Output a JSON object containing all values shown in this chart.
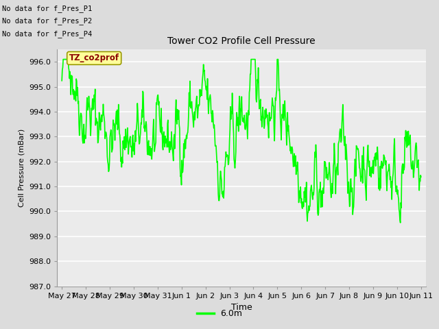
{
  "title": "Tower CO2 Profile Cell Pressure",
  "xlabel": "Time",
  "ylabel": "Cell Pressure (mBar)",
  "ylim": [
    987.0,
    996.5
  ],
  "yticks": [
    987.0,
    988.0,
    989.0,
    990.0,
    991.0,
    992.0,
    993.0,
    994.0,
    995.0,
    996.0
  ],
  "line_color": "#00FF00",
  "line_width": 1.2,
  "background_color": "#DCDCDC",
  "plot_bg_color": "#EBEBEB",
  "legend_label": "6.0m",
  "text_annotations": [
    "No data for f_Pres_P1",
    "No data for f_Pres_P2",
    "No data for f_Pres_P4"
  ],
  "tooltip_text": "TZ_co2prof",
  "tooltip_bg": "#FFFF99",
  "tooltip_border": "#999900",
  "xtick_labels": [
    "May 27",
    "May 28",
    "May 29",
    "May 30",
    "May 31",
    "Jun 1",
    "Jun 2",
    "Jun 3",
    "Jun 4",
    "Jun 5",
    "Jun 6",
    "Jun 7",
    "Jun 8",
    "Jun 9",
    "Jun 10",
    "Jun 11"
  ],
  "seed": 42,
  "n_points": 800
}
